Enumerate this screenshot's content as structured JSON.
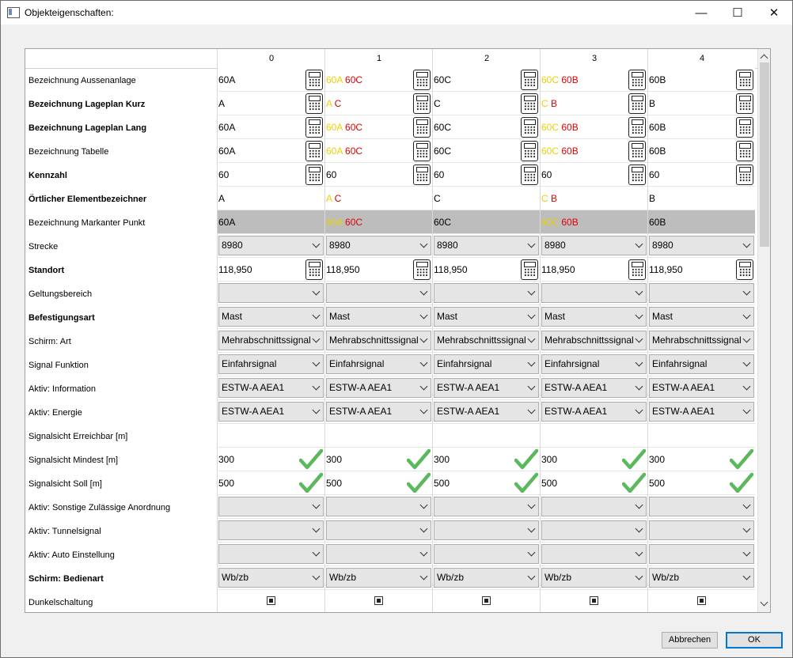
{
  "window": {
    "title": "Objekteigenschaften:",
    "minimize": "—",
    "maximize": "☐",
    "close": "✕"
  },
  "columns": [
    "0",
    "1",
    "2",
    "3",
    "4"
  ],
  "rows": [
    {
      "label": "Bezeichnung Aussenanlage",
      "bold": false,
      "type": "text",
      "calc": true,
      "values": [
        [
          [
            "60A",
            ""
          ]
        ],
        [
          [
            "60A",
            "y"
          ],
          [
            " 60C",
            "r"
          ]
        ],
        [
          [
            "60C",
            ""
          ]
        ],
        [
          [
            "60C",
            "y"
          ],
          [
            " 60B",
            "r"
          ]
        ],
        [
          [
            "60B",
            ""
          ]
        ]
      ]
    },
    {
      "label": "Bezeichnung Lageplan Kurz",
      "bold": true,
      "type": "text",
      "calc": true,
      "values": [
        [
          [
            "A",
            ""
          ]
        ],
        [
          [
            "A",
            "y"
          ],
          [
            " C",
            "r"
          ]
        ],
        [
          [
            "C",
            ""
          ]
        ],
        [
          [
            "C",
            "y"
          ],
          [
            " B",
            "r"
          ]
        ],
        [
          [
            "B",
            ""
          ]
        ]
      ]
    },
    {
      "label": "Bezeichnung Lageplan Lang",
      "bold": true,
      "type": "text",
      "calc": true,
      "values": [
        [
          [
            "60A",
            ""
          ]
        ],
        [
          [
            "60A",
            "y"
          ],
          [
            " 60C",
            "r"
          ]
        ],
        [
          [
            "60C",
            ""
          ]
        ],
        [
          [
            "60C",
            "y"
          ],
          [
            " 60B",
            "r"
          ]
        ],
        [
          [
            "60B",
            ""
          ]
        ]
      ]
    },
    {
      "label": "Bezeichnung Tabelle",
      "bold": false,
      "type": "text",
      "calc": true,
      "values": [
        [
          [
            "60A",
            ""
          ]
        ],
        [
          [
            "60A",
            "y"
          ],
          [
            " 60C",
            "r"
          ]
        ],
        [
          [
            "60C",
            ""
          ]
        ],
        [
          [
            "60C",
            "y"
          ],
          [
            " 60B",
            "r"
          ]
        ],
        [
          [
            "60B",
            ""
          ]
        ]
      ]
    },
    {
      "label": "Kennzahl",
      "bold": true,
      "type": "text",
      "calc": true,
      "values": [
        [
          [
            "60",
            ""
          ]
        ],
        [
          [
            "60",
            ""
          ]
        ],
        [
          [
            "60",
            ""
          ]
        ],
        [
          [
            "60",
            ""
          ]
        ],
        [
          [
            "60",
            ""
          ]
        ]
      ]
    },
    {
      "label": "Örtlicher Elementbezeichner",
      "bold": true,
      "type": "text",
      "calc": false,
      "values": [
        [
          [
            "A",
            ""
          ]
        ],
        [
          [
            "A",
            "y"
          ],
          [
            " C",
            "r"
          ]
        ],
        [
          [
            "C",
            ""
          ]
        ],
        [
          [
            "C",
            "y"
          ],
          [
            " B",
            "r"
          ]
        ],
        [
          [
            "B",
            ""
          ]
        ]
      ]
    },
    {
      "label": "Bezeichnung Markanter Punkt",
      "bold": false,
      "type": "text",
      "calc": false,
      "gray": true,
      "values": [
        [
          [
            "60A",
            ""
          ]
        ],
        [
          [
            "60A",
            "y"
          ],
          [
            " 60C",
            "r"
          ]
        ],
        [
          [
            "60C",
            ""
          ]
        ],
        [
          [
            "60C",
            "y"
          ],
          [
            " 60B",
            "r"
          ]
        ],
        [
          [
            "60B",
            ""
          ]
        ]
      ]
    },
    {
      "label": "Strecke",
      "bold": false,
      "type": "combo",
      "values": [
        "8980",
        "8980",
        "8980",
        "8980",
        "8980"
      ]
    },
    {
      "label": "Standort",
      "bold": true,
      "type": "text",
      "calc": true,
      "values": [
        [
          [
            "118,950",
            ""
          ]
        ],
        [
          [
            "118,950",
            ""
          ]
        ],
        [
          [
            "118,950",
            ""
          ]
        ],
        [
          [
            "118,950",
            ""
          ]
        ],
        [
          [
            "118,950",
            ""
          ]
        ]
      ]
    },
    {
      "label": "Geltungsbereich",
      "bold": false,
      "type": "combo",
      "values": [
        "",
        "",
        "",
        "",
        ""
      ]
    },
    {
      "label": "Befestigungsart",
      "bold": true,
      "type": "combo",
      "values": [
        "Mast",
        "Mast",
        "Mast",
        "Mast",
        "Mast"
      ]
    },
    {
      "label": "Schirm: Art",
      "bold": false,
      "type": "combo",
      "values": [
        "Mehrabschnittssignal",
        "Mehrabschnittssignal",
        "Mehrabschnittssignal",
        "Mehrabschnittssignal",
        "Mehrabschnittssignal"
      ]
    },
    {
      "label": "Signal Funktion",
      "bold": false,
      "type": "combo",
      "values": [
        "Einfahrsignal",
        "Einfahrsignal",
        "Einfahrsignal",
        "Einfahrsignal",
        "Einfahrsignal"
      ]
    },
    {
      "label": "Aktiv: Information",
      "bold": false,
      "type": "combo",
      "values": [
        "ESTW-A AEA1",
        "ESTW-A AEA1",
        "ESTW-A AEA1",
        "ESTW-A AEA1",
        "ESTW-A AEA1"
      ]
    },
    {
      "label": "Aktiv: Energie",
      "bold": false,
      "type": "combo",
      "values": [
        "ESTW-A AEA1",
        "ESTW-A AEA1",
        "ESTW-A AEA1",
        "ESTW-A AEA1",
        "ESTW-A AEA1"
      ]
    },
    {
      "label": "Signalsicht Erreichbar [m]",
      "bold": false,
      "type": "empty",
      "values": [
        "",
        "",
        "",
        "",
        ""
      ]
    },
    {
      "label": "Signalsicht Mindest [m]",
      "bold": false,
      "type": "checktext",
      "values": [
        "300",
        "300",
        "300",
        "300",
        "300"
      ]
    },
    {
      "label": "Signalsicht Soll [m]",
      "bold": false,
      "type": "checktext",
      "values": [
        "500",
        "500",
        "500",
        "500",
        "500"
      ]
    },
    {
      "label": "Aktiv: Sonstige Zulässige Anordnung",
      "bold": false,
      "type": "combo",
      "values": [
        "",
        "",
        "",
        "",
        ""
      ]
    },
    {
      "label": "Aktiv: Tunnelsignal",
      "bold": false,
      "type": "combo",
      "values": [
        "",
        "",
        "",
        "",
        ""
      ]
    },
    {
      "label": "Aktiv: Auto Einstellung",
      "bold": false,
      "type": "combo",
      "values": [
        "",
        "",
        "",
        "",
        ""
      ]
    },
    {
      "label": "Schirm: Bedienart",
      "bold": true,
      "type": "combo",
      "values": [
        "Wb/zb",
        "Wb/zb",
        "Wb/zb",
        "Wb/zb",
        "Wb/zb"
      ]
    },
    {
      "label": "Dunkelschaltung",
      "bold": false,
      "type": "checkbox",
      "values": [
        "",
        "",
        "",
        "",
        ""
      ]
    }
  ],
  "buttons": {
    "cancel": "Abbrechen",
    "ok": "OK"
  },
  "colors": {
    "yellow": "#e8d200",
    "red": "#e00000",
    "check": "#5cb85c",
    "accent": "#0078d7"
  }
}
